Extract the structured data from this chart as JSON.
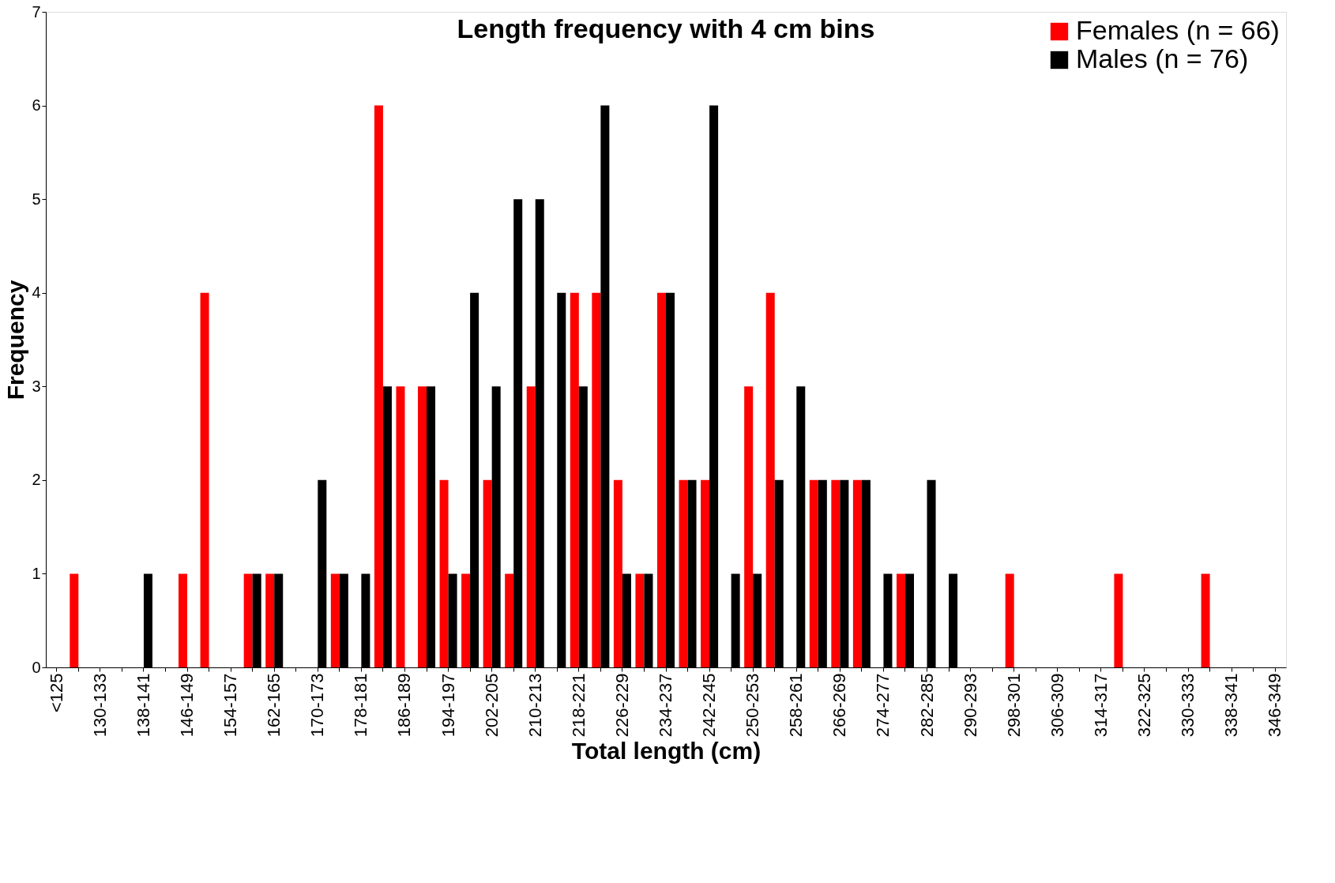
{
  "chart_data": {
    "type": "bar",
    "title": "Length frequency with 4 cm bins",
    "xlabel": "Total length (cm)",
    "ylabel": "Frequency",
    "categories": [
      "<125",
      null,
      "130-133",
      null,
      "138-141",
      null,
      "146-149",
      null,
      "154-157",
      null,
      "162-165",
      null,
      "170-173",
      null,
      "178-181",
      null,
      "186-189",
      null,
      "194-197",
      null,
      "202-205",
      null,
      "210-213",
      null,
      "218-221",
      null,
      "226-229",
      null,
      "234-237",
      null,
      "242-245",
      null,
      "250-253",
      null,
      "258-261",
      null,
      "266-269",
      null,
      "274-277",
      null,
      "282-285",
      null,
      "290-293",
      null,
      "298-301",
      null,
      "306-309",
      null,
      "314-317",
      null,
      "322-325",
      null,
      "330-333",
      null,
      "338-341",
      null,
      "346-349"
    ],
    "series": [
      {
        "name": "Females (n = 66)",
        "color": "#ff0000",
        "values": [
          0,
          1,
          0,
          0,
          0,
          0,
          1,
          4,
          0,
          1,
          1,
          0,
          0,
          1,
          0,
          6,
          3,
          3,
          2,
          1,
          2,
          1,
          3,
          0,
          4,
          4,
          2,
          1,
          4,
          2,
          2,
          0,
          3,
          4,
          0,
          2,
          2,
          2,
          0,
          1,
          0,
          0,
          0,
          0,
          1,
          0,
          0,
          0,
          0,
          1,
          0,
          0,
          0,
          1,
          0,
          0,
          0
        ]
      },
      {
        "name": "Males (n = 76)",
        "color": "#000000",
        "values": [
          0,
          0,
          0,
          0,
          1,
          0,
          0,
          0,
          0,
          1,
          1,
          0,
          2,
          1,
          1,
          3,
          0,
          3,
          1,
          4,
          3,
          5,
          5,
          4,
          3,
          6,
          1,
          1,
          4,
          2,
          6,
          1,
          1,
          2,
          3,
          2,
          2,
          2,
          1,
          1,
          2,
          1,
          0,
          0,
          0,
          0,
          0,
          0,
          0,
          0,
          0,
          0,
          0,
          0,
          0,
          0,
          0
        ]
      }
    ],
    "ylim": [
      0,
      7
    ],
    "yticks": [
      0,
      1,
      2,
      3,
      4,
      5,
      6,
      7
    ],
    "grid": false,
    "legend": "top right"
  }
}
